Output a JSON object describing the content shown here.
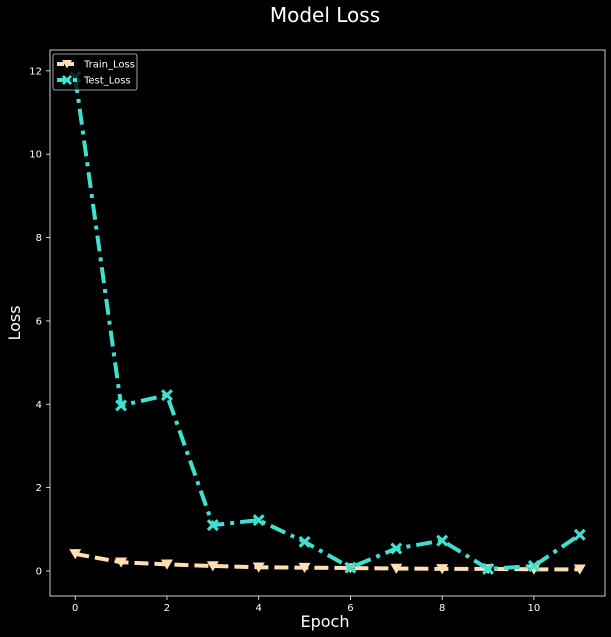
{
  "chart_data": {
    "type": "line",
    "title": "Model Loss",
    "xlabel": "Epoch",
    "ylabel": "Loss",
    "xlim": [
      -0.55,
      11.55
    ],
    "ylim": [
      -0.6,
      12.5
    ],
    "xticks": [
      0,
      2,
      4,
      6,
      8,
      10
    ],
    "yticks": [
      0,
      2,
      4,
      6,
      8,
      10,
      12
    ],
    "grid": false,
    "legend_position": "top-left",
    "x": [
      0,
      1,
      2,
      3,
      4,
      5,
      6,
      7,
      8,
      9,
      10,
      11
    ],
    "series": [
      {
        "name": "Train_Loss",
        "color": "#ffdeb3",
        "line_style": "dashed",
        "marker": "triangle-down",
        "values": [
          0.41,
          0.21,
          0.16,
          0.12,
          0.09,
          0.08,
          0.07,
          0.06,
          0.05,
          0.05,
          0.04,
          0.04
        ]
      },
      {
        "name": "Test_Loss",
        "color": "#40e0d0",
        "line_style": "dash-dot",
        "marker": "x-filled",
        "values": [
          11.85,
          3.97,
          4.22,
          1.1,
          1.22,
          0.7,
          0.08,
          0.54,
          0.73,
          0.05,
          0.12,
          0.87
        ]
      }
    ]
  }
}
